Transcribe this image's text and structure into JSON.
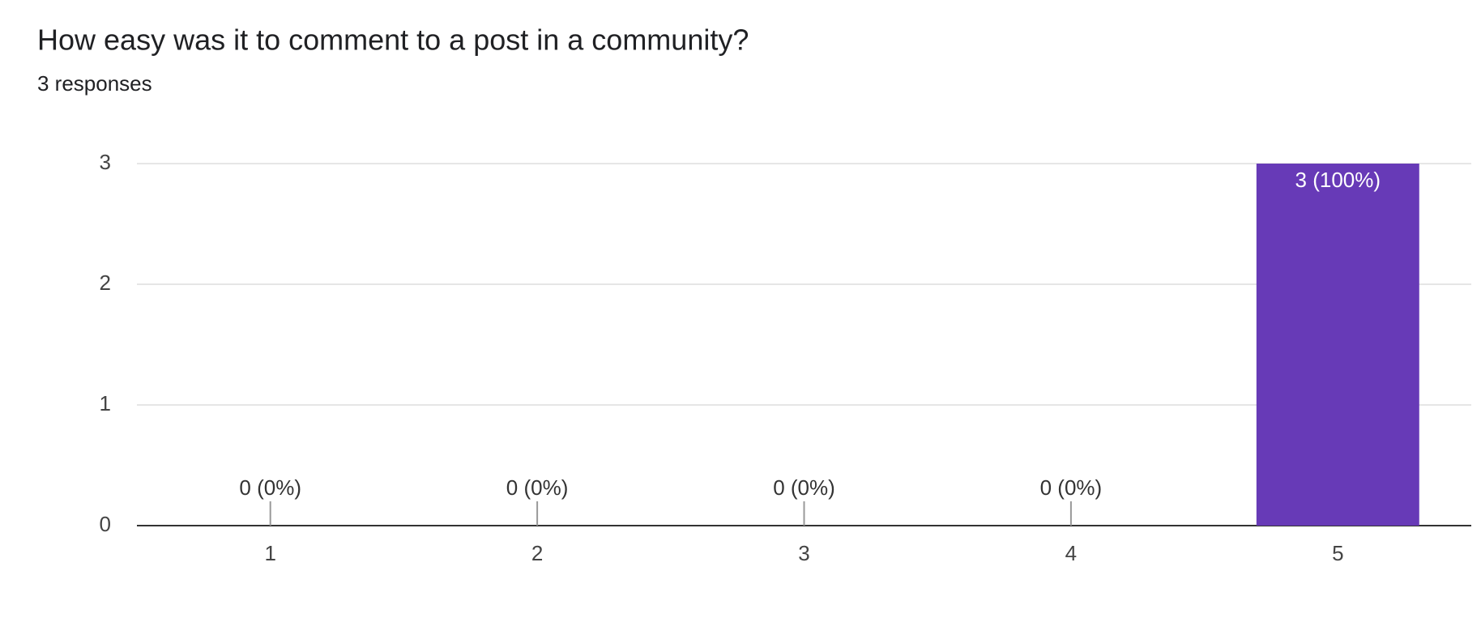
{
  "chart_data": {
    "type": "bar",
    "title": "How easy was it to comment to a post in a community?",
    "subtitle": "3 responses",
    "categories": [
      "1",
      "2",
      "3",
      "4",
      "5"
    ],
    "values": [
      0,
      0,
      0,
      0,
      3
    ],
    "value_labels": [
      "0 (0%)",
      "0 (0%)",
      "0 (0%)",
      "0 (0%)",
      "3 (100%)"
    ],
    "color": "#673ab7",
    "ylim": [
      0,
      3
    ],
    "yticks": [
      0,
      1,
      2,
      3
    ],
    "grid": true
  }
}
